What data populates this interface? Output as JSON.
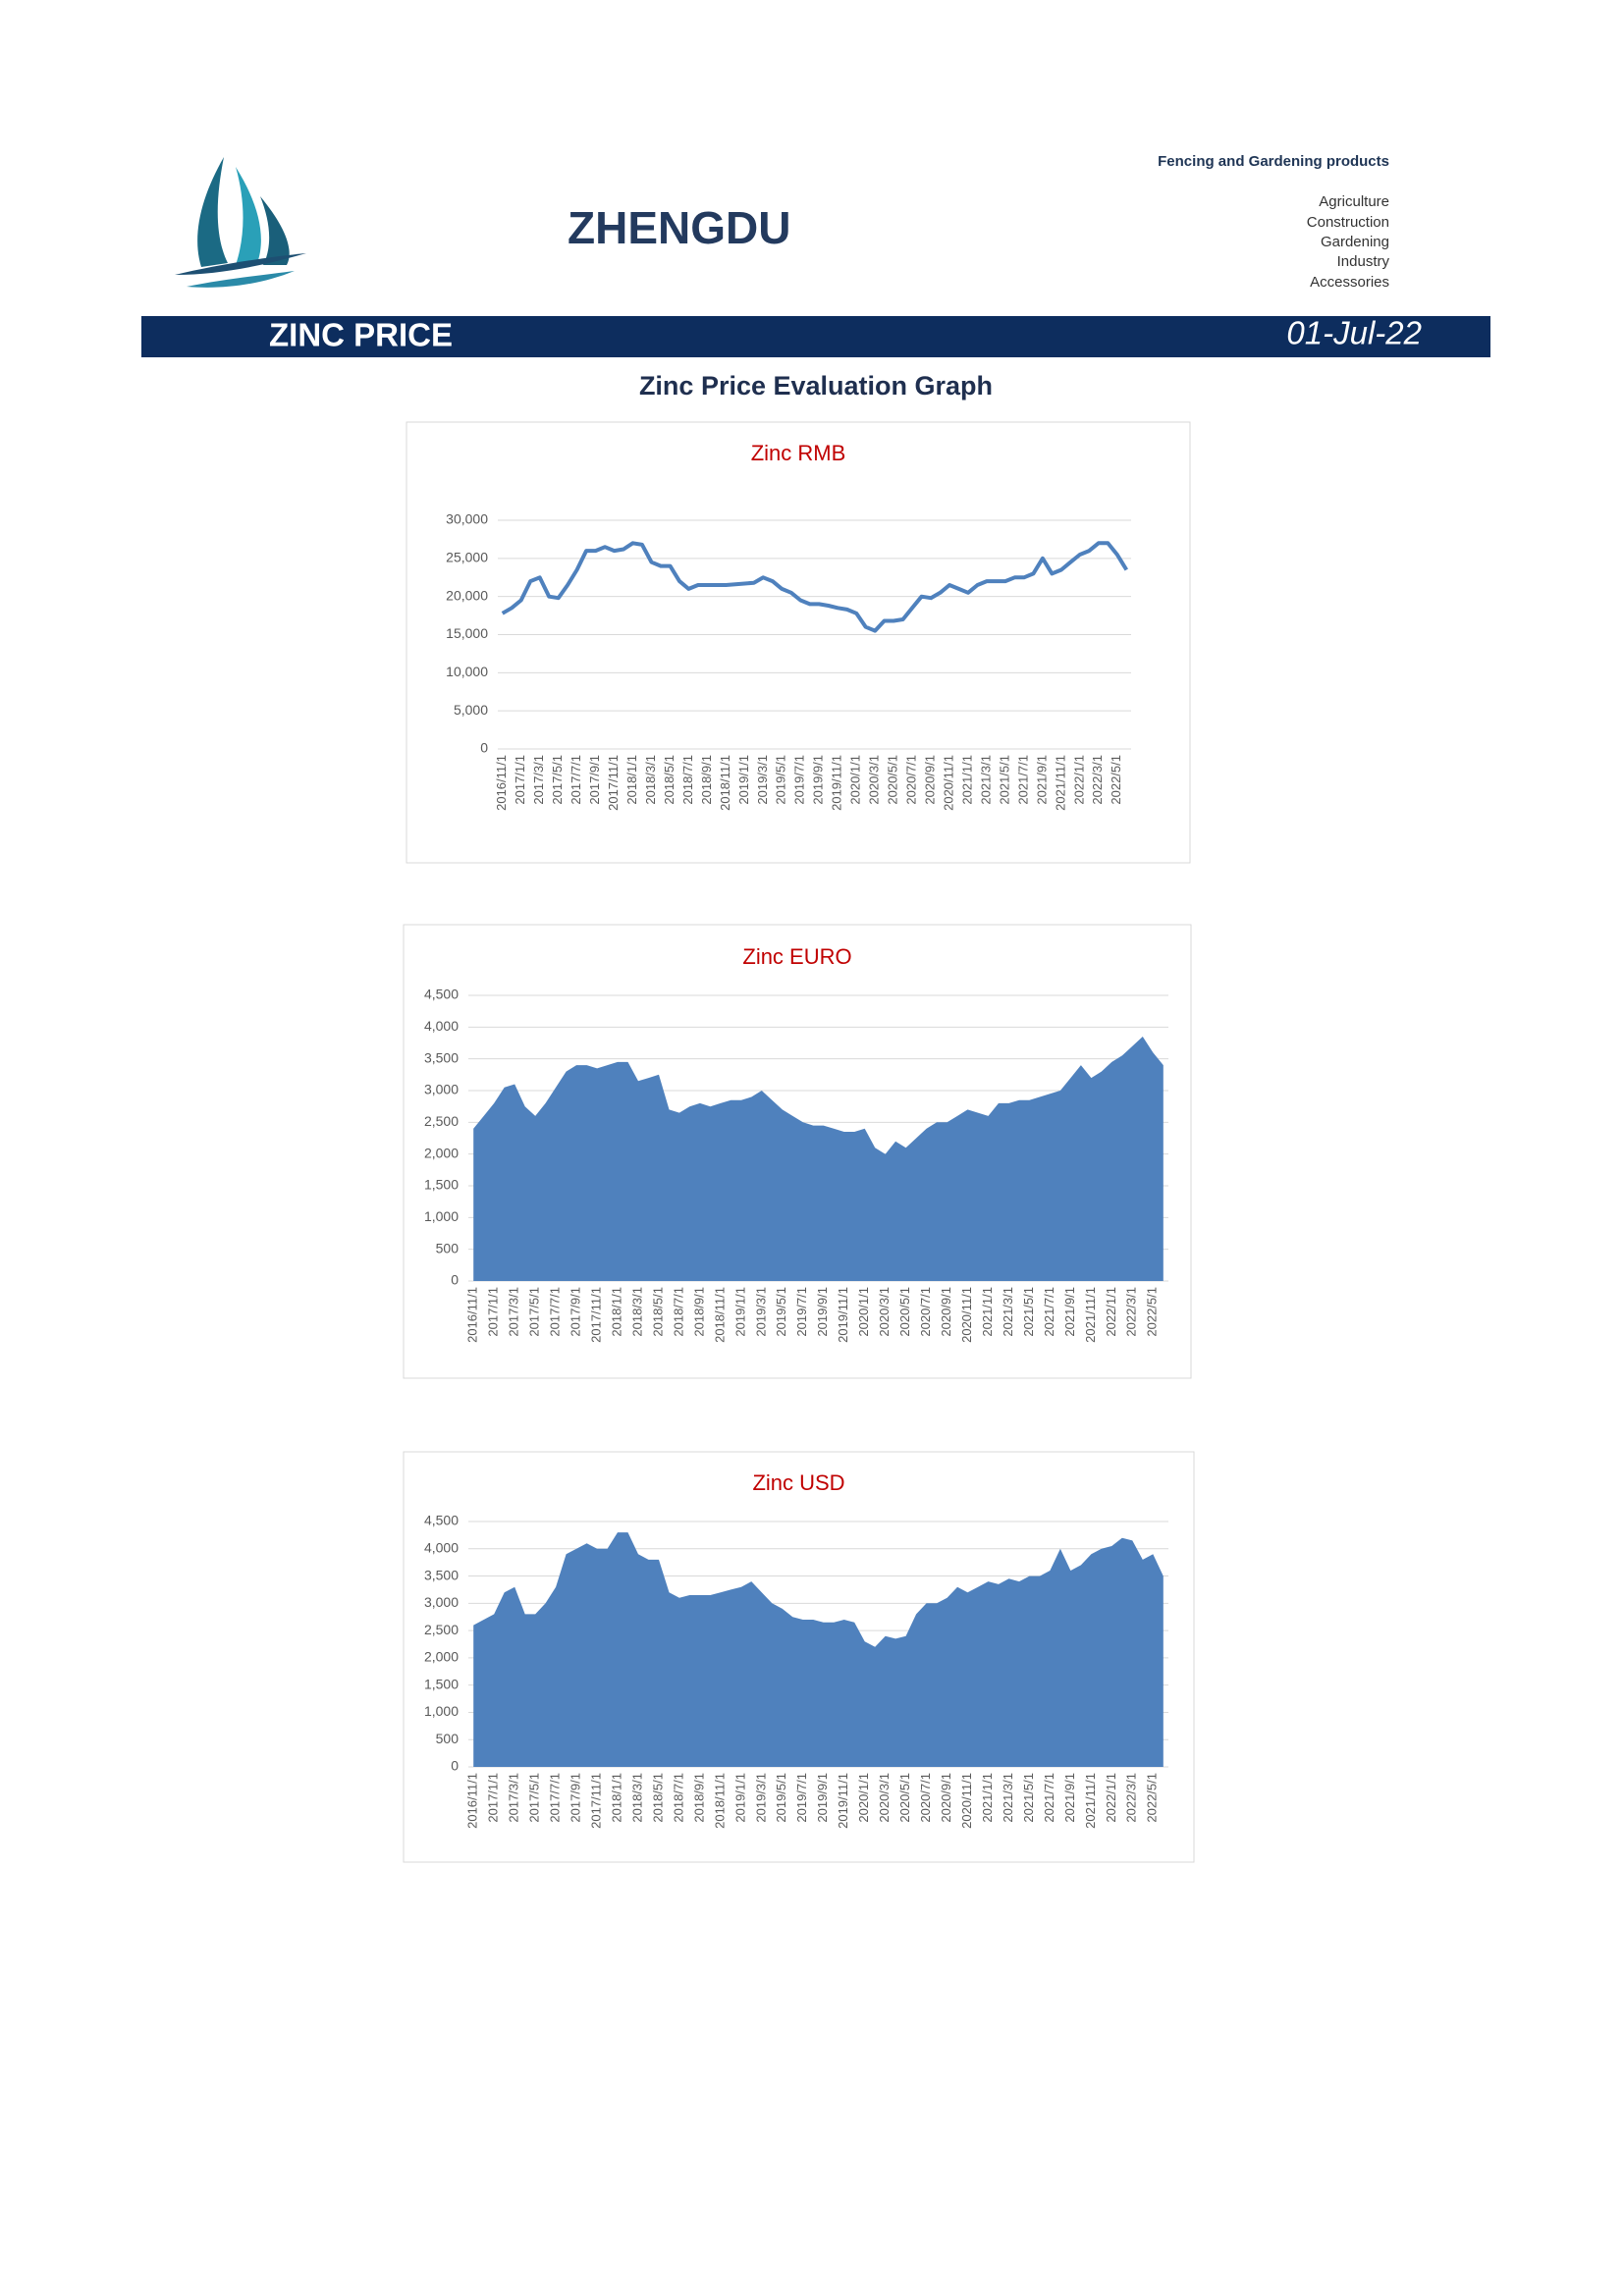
{
  "header": {
    "brand": "ZHENGDU",
    "tagline": "Fencing and Gardening products",
    "sectors": [
      "Agriculture",
      "Construction",
      "Gardening",
      "Industry",
      "Accessories"
    ]
  },
  "banner": {
    "title": "ZINC PRICE",
    "date": "01-Jul-22"
  },
  "subtitle": "Zinc Price Evaluation Graph",
  "chart_data": [
    {
      "type": "line",
      "title": "Zinc RMB",
      "color": "#4f81bd",
      "grid": true,
      "categories": [
        "2016/11/1",
        null,
        "2017/1/1",
        null,
        "2017/3/1",
        null,
        "2017/5/1",
        null,
        "2017/7/1",
        null,
        "2017/9/1",
        null,
        "2017/11/1",
        null,
        "2018/1/1",
        null,
        "2018/3/1",
        null,
        "2018/5/1",
        null,
        "2018/7/1",
        null,
        "2018/9/1",
        null,
        "2018/11/1",
        null,
        "2019/1/1",
        null,
        "2019/3/1",
        null,
        "2019/5/1",
        null,
        "2019/7/1",
        null,
        "2019/9/1",
        null,
        "2019/11/1",
        null,
        "2020/1/1",
        null,
        "2020/3/1",
        null,
        "2020/5/1",
        null,
        "2020/7/1",
        null,
        "2020/9/1",
        null,
        "2020/11/1",
        null,
        "2021/1/1",
        null,
        "2021/3/1",
        null,
        "2021/5/1",
        null,
        "2021/7/1",
        null,
        "2021/9/1",
        null,
        "2021/11/1",
        null,
        "2022/1/1",
        null,
        "2022/3/1",
        null,
        "2022/5/1",
        null
      ],
      "values": [
        17800,
        18500,
        19500,
        22000,
        22500,
        20000,
        19800,
        21500,
        23500,
        26000,
        26000,
        26500,
        26000,
        26200,
        27000,
        26800,
        24500,
        24000,
        24000,
        22000,
        21000,
        21500,
        21500,
        21500,
        21500,
        21600,
        21700,
        21800,
        22500,
        22000,
        21000,
        20500,
        19500,
        19000,
        19000,
        18800,
        18500,
        18300,
        17800,
        16000,
        15500,
        16800,
        16800,
        17000,
        18500,
        20000,
        19800,
        20500,
        21500,
        21000,
        20500,
        21500,
        22000,
        22000,
        22000,
        22500,
        22500,
        23000,
        25000,
        23000,
        23500,
        24500,
        25500,
        26000,
        27000,
        27000,
        25500,
        23500
      ],
      "ylim": [
        0,
        30000
      ],
      "yticks": [
        0,
        {
          "value": 5000,
          "label": "5,000"
        },
        {
          "value": 10000,
          "label": "10,000"
        },
        {
          "value": 15000,
          "label": "15,000"
        },
        {
          "value": 20000,
          "label": "20,000"
        },
        {
          "value": 25000,
          "label": "25,000"
        },
        {
          "value": 30000,
          "label": "30,000"
        }
      ]
    },
    {
      "type": "area",
      "title": "Zinc EURO",
      "color": "#4f81bd",
      "grid": true,
      "categories": [
        "2016/11/1",
        null,
        "2017/1/1",
        null,
        "2017/3/1",
        null,
        "2017/5/1",
        null,
        "2017/7/1",
        null,
        "2017/9/1",
        null,
        "2017/11/1",
        null,
        "2018/1/1",
        null,
        "2018/3/1",
        null,
        "2018/5/1",
        null,
        "2018/7/1",
        null,
        "2018/9/1",
        null,
        "2018/11/1",
        null,
        "2019/1/1",
        null,
        "2019/3/1",
        null,
        "2019/5/1",
        null,
        "2019/7/1",
        null,
        "2019/9/1",
        null,
        "2019/11/1",
        null,
        "2020/1/1",
        null,
        "2020/3/1",
        null,
        "2020/5/1",
        null,
        "2020/7/1",
        null,
        "2020/9/1",
        null,
        "2020/11/1",
        null,
        "2021/1/1",
        null,
        "2021/3/1",
        null,
        "2021/5/1",
        null,
        "2021/7/1",
        null,
        "2021/9/1",
        null,
        "2021/11/1",
        null,
        "2022/1/1",
        null,
        "2022/3/1",
        null,
        "2022/5/1",
        null
      ],
      "values": [
        2400,
        2600,
        2800,
        3050,
        3100,
        2750,
        2600,
        2800,
        3050,
        3300,
        3400,
        3400,
        3350,
        3400,
        3450,
        3450,
        3150,
        3200,
        3250,
        2700,
        2650,
        2750,
        2800,
        2750,
        2800,
        2850,
        2850,
        2900,
        3000,
        2850,
        2700,
        2600,
        2500,
        2450,
        2450,
        2400,
        2350,
        2350,
        2400,
        2100,
        2000,
        2200,
        2100,
        2250,
        2400,
        2500,
        2500,
        2600,
        2700,
        2650,
        2600,
        2800,
        2800,
        2850,
        2850,
        2900,
        2950,
        3000,
        3200,
        3400,
        3200,
        3300,
        3450,
        3550,
        3700,
        3850,
        3600,
        3400
      ],
      "ylim": [
        0,
        4500
      ],
      "yticks": [
        0,
        500,
        {
          "value": 1000,
          "label": "1,000"
        },
        {
          "value": 1500,
          "label": "1,500"
        },
        {
          "value": 2000,
          "label": "2,000"
        },
        {
          "value": 2500,
          "label": "2,500"
        },
        {
          "value": 3000,
          "label": "3,000"
        },
        {
          "value": 3500,
          "label": "3,500"
        },
        {
          "value": 4000,
          "label": "4,000"
        },
        {
          "value": 4500,
          "label": "4,500"
        }
      ]
    },
    {
      "type": "area",
      "title": "Zinc USD",
      "color": "#4f81bd",
      "grid": true,
      "categories": [
        "2016/11/1",
        null,
        "2017/1/1",
        null,
        "2017/3/1",
        null,
        "2017/5/1",
        null,
        "2017/7/1",
        null,
        "2017/9/1",
        null,
        "2017/11/1",
        null,
        "2018/1/1",
        null,
        "2018/3/1",
        null,
        "2018/5/1",
        null,
        "2018/7/1",
        null,
        "2018/9/1",
        null,
        "2018/11/1",
        null,
        "2019/1/1",
        null,
        "2019/3/1",
        null,
        "2019/5/1",
        null,
        "2019/7/1",
        null,
        "2019/9/1",
        null,
        "2019/11/1",
        null,
        "2020/1/1",
        null,
        "2020/3/1",
        null,
        "2020/5/1",
        null,
        "2020/7/1",
        null,
        "2020/9/1",
        null,
        "2020/11/1",
        null,
        "2021/1/1",
        null,
        "2021/3/1",
        null,
        "2021/5/1",
        null,
        "2021/7/1",
        null,
        "2021/9/1",
        null,
        "2021/11/1",
        null,
        "2022/1/1",
        null,
        "2022/3/1",
        null,
        "2022/5/1",
        null
      ],
      "values": [
        2600,
        2700,
        2800,
        3200,
        3300,
        2800,
        2800,
        3000,
        3300,
        3900,
        4000,
        4100,
        4000,
        4000,
        4300,
        4300,
        3900,
        3800,
        3800,
        3200,
        3100,
        3150,
        3150,
        3150,
        3200,
        3250,
        3300,
        3400,
        3200,
        3000,
        2900,
        2750,
        2700,
        2700,
        2650,
        2650,
        2700,
        2650,
        2300,
        2200,
        2400,
        2350,
        2400,
        2800,
        3000,
        3000,
        3100,
        3300,
        3200,
        3300,
        3400,
        3350,
        3450,
        3400,
        3500,
        3500,
        3600,
        4000,
        3600,
        3700,
        3900,
        4000,
        4050,
        4200,
        4150,
        3800,
        3900,
        3500
      ],
      "ylim": [
        0,
        4500
      ],
      "yticks": [
        0,
        500,
        {
          "value": 1000,
          "label": "1,000"
        },
        {
          "value": 1500,
          "label": "1,500"
        },
        {
          "value": 2000,
          "label": "2,000"
        },
        {
          "value": 2500,
          "label": "2,500"
        },
        {
          "value": 3000,
          "label": "3,000"
        },
        {
          "value": 3500,
          "label": "3,500"
        },
        {
          "value": 4000,
          "label": "4,000"
        },
        {
          "value": 4500,
          "label": "4,500"
        }
      ]
    }
  ]
}
